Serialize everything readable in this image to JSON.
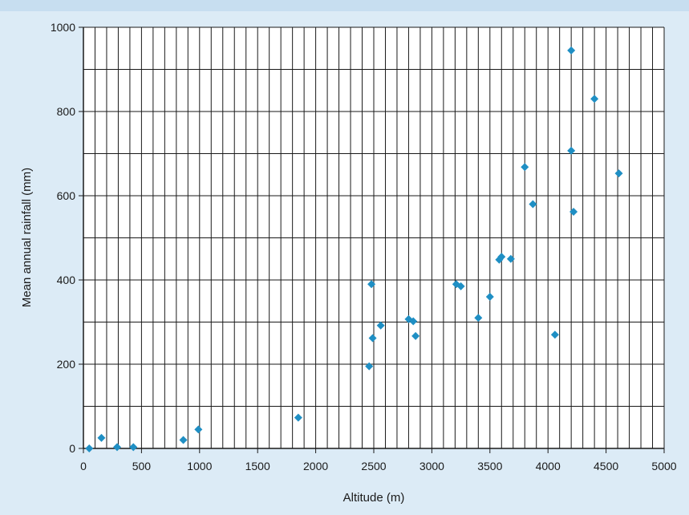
{
  "chart_data": {
    "type": "scatter",
    "title": "",
    "xlabel": "Altitude (m)",
    "ylabel": "Mean annual rainfall (mm)",
    "xlim": [
      0,
      5000
    ],
    "ylim": [
      0,
      1000
    ],
    "x_ticks": [
      0,
      500,
      1000,
      1500,
      2000,
      2500,
      3000,
      3500,
      4000,
      4500,
      5000
    ],
    "y_ticks": [
      0,
      200,
      400,
      600,
      800,
      1000
    ],
    "x_tick_labels": [
      "0",
      "500",
      "1000",
      "1500",
      "2000",
      "2500",
      "3000",
      "3500",
      "4000",
      "4500",
      "5000"
    ],
    "y_tick_labels": [
      "0",
      "200",
      "400",
      "600",
      "800",
      "1000"
    ],
    "grid": true,
    "minor_x_grid_step": 100,
    "minor_y_grid_step": 100,
    "marker": "diamond",
    "marker_color": "#1f8fc4",
    "series": [
      {
        "points": [
          {
            "x": 50,
            "y": 0
          },
          {
            "x": 155,
            "y": 25
          },
          {
            "x": 290,
            "y": 3
          },
          {
            "x": 430,
            "y": 3
          },
          {
            "x": 860,
            "y": 20
          },
          {
            "x": 990,
            "y": 45
          },
          {
            "x": 1850,
            "y": 73
          },
          {
            "x": 2460,
            "y": 195
          },
          {
            "x": 2480,
            "y": 390
          },
          {
            "x": 2490,
            "y": 262
          },
          {
            "x": 2560,
            "y": 292
          },
          {
            "x": 2800,
            "y": 307
          },
          {
            "x": 2840,
            "y": 302
          },
          {
            "x": 2860,
            "y": 267
          },
          {
            "x": 3210,
            "y": 390
          },
          {
            "x": 3250,
            "y": 385
          },
          {
            "x": 3400,
            "y": 310
          },
          {
            "x": 3500,
            "y": 360
          },
          {
            "x": 3580,
            "y": 448
          },
          {
            "x": 3600,
            "y": 455
          },
          {
            "x": 3680,
            "y": 450
          },
          {
            "x": 3800,
            "y": 668
          },
          {
            "x": 3870,
            "y": 580
          },
          {
            "x": 4060,
            "y": 270
          },
          {
            "x": 4200,
            "y": 945
          },
          {
            "x": 4200,
            "y": 707
          },
          {
            "x": 4220,
            "y": 562
          },
          {
            "x": 4400,
            "y": 830
          },
          {
            "x": 4610,
            "y": 653
          }
        ]
      }
    ]
  }
}
